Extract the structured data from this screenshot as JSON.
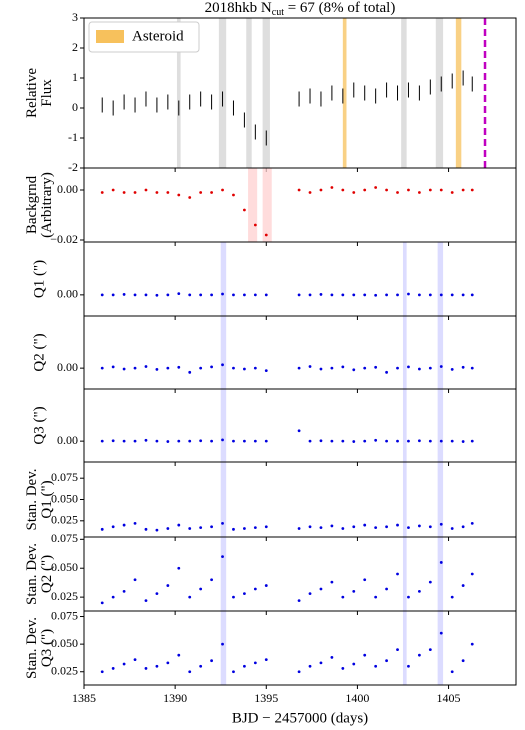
{
  "chart_data": [
    {
      "type": "errorbar",
      "title": "2018hkb  N",
      "title_sub": "cut",
      "title_rest": " = 67 (8% of total)",
      "ylabel": [
        "Relative",
        "Flux"
      ],
      "color": "#000000",
      "xlim": [
        1385,
        1408.7
      ],
      "ylim": [
        -2,
        3
      ],
      "yticks": [
        -2,
        -1,
        0,
        1,
        2,
        3
      ],
      "yerr": 0.25,
      "x": [
        1386.0,
        1386.6,
        1387.2,
        1387.8,
        1388.4,
        1389.0,
        1389.6,
        1390.2,
        1390.8,
        1391.4,
        1392.0,
        1392.6,
        1393.2,
        1393.8,
        1394.4,
        1395.0,
        1396.8,
        1397.4,
        1398.0,
        1398.6,
        1399.2,
        1399.8,
        1400.4,
        1401.0,
        1401.6,
        1402.2,
        1402.8,
        1403.4,
        1404.0,
        1404.6,
        1405.2,
        1405.8,
        1406.3
      ],
      "values": [
        0.1,
        0.0,
        0.2,
        0.1,
        0.3,
        0.1,
        0.2,
        0.0,
        0.2,
        0.3,
        0.2,
        0.3,
        0.0,
        -0.4,
        -0.8,
        -1.0,
        0.3,
        0.4,
        0.3,
        0.5,
        0.4,
        0.6,
        0.5,
        0.4,
        0.6,
        0.5,
        0.6,
        0.5,
        0.7,
        0.8,
        0.9,
        1.0,
        0.8
      ],
      "bands": [
        {
          "color": "#d3d3d3",
          "ranges": [
            [
              1390.1,
              1390.3
            ],
            [
              1392.4,
              1392.8
            ],
            [
              1393.9,
              1394.2
            ],
            [
              1394.8,
              1395.2
            ],
            [
              1402.4,
              1402.7
            ],
            [
              1404.3,
              1404.7
            ]
          ]
        },
        {
          "name": "Asteroid",
          "color": "#f7c15c",
          "ranges": [
            [
              1399.2,
              1399.4
            ],
            [
              1405.4,
              1405.7
            ]
          ]
        }
      ],
      "cut_line": 1407.0,
      "cut_color": "#c000c0"
    },
    {
      "type": "scatter",
      "ylabel": [
        "Backgrnd",
        "(Arbitrary)"
      ],
      "color": "#e00000",
      "xlim": [
        1385,
        1408.7
      ],
      "ylim": [
        -0.0208,
        0.0088
      ],
      "yticks": [
        {
          "value": -0.02,
          "label": "−0.02"
        },
        {
          "value": 0,
          "label": "0.00"
        }
      ],
      "x": [
        1386.0,
        1386.6,
        1387.2,
        1387.8,
        1388.4,
        1389.0,
        1389.6,
        1390.2,
        1390.8,
        1391.4,
        1392.0,
        1392.6,
        1393.2,
        1393.8,
        1394.4,
        1395.0,
        1396.8,
        1397.4,
        1398.0,
        1398.6,
        1399.2,
        1399.8,
        1400.4,
        1401.0,
        1401.6,
        1402.2,
        1402.8,
        1403.4,
        1404.0,
        1404.6,
        1405.2,
        1405.8,
        1406.3
      ],
      "values": [
        -0.001,
        0.0,
        -0.001,
        -0.001,
        0.0,
        -0.001,
        -0.001,
        -0.002,
        -0.003,
        -0.001,
        -0.001,
        0.0,
        -0.002,
        -0.008,
        -0.014,
        -0.018,
        0.0,
        -0.001,
        0.0,
        0.001,
        0.0,
        -0.001,
        0.0,
        0.001,
        0.0,
        -0.001,
        0.0,
        -0.001,
        0.0,
        0.0,
        -0.001,
        0.0,
        0.0
      ],
      "bands": [
        {
          "color": "#ffd0d0",
          "ranges": [
            [
              1394.0,
              1394.5
            ],
            [
              1394.8,
              1395.3
            ]
          ]
        }
      ]
    },
    {
      "type": "scatter",
      "ylabel": [
        "Q1 (\")"
      ],
      "color": "#0000e0",
      "xlim": [
        1385,
        1408.7
      ],
      "ylim": [
        -0.005,
        0.0125
      ],
      "yticks": [
        {
          "value": 0,
          "label": "0.00"
        }
      ],
      "x": [
        1386.0,
        1386.6,
        1387.2,
        1387.8,
        1388.4,
        1389.0,
        1389.6,
        1390.2,
        1390.8,
        1391.4,
        1392.0,
        1392.6,
        1393.2,
        1393.8,
        1394.4,
        1395.0,
        1396.8,
        1397.4,
        1398.0,
        1398.6,
        1399.2,
        1399.8,
        1400.4,
        1401.0,
        1401.6,
        1402.2,
        1402.8,
        1403.4,
        1404.0,
        1404.6,
        1405.2,
        1405.8,
        1406.3
      ],
      "values": [
        0.0,
        0.0,
        0.0001,
        0.0,
        0.0,
        -0.0001,
        0.0,
        0.0003,
        0.0,
        0.0,
        0.0,
        0.0002,
        0.0,
        0.0,
        0.0,
        0.0,
        0.0,
        0.0,
        0.0001,
        0.0,
        0.0,
        0.0,
        0.0,
        -0.0001,
        0.0,
        0.0,
        0.0002,
        0.0,
        0.0,
        0.0,
        0.0,
        0.0,
        0.0
      ],
      "bands": [
        {
          "color": "#d0d0ff",
          "ranges": [
            [
              1392.5,
              1392.8
            ],
            [
              1402.5,
              1402.7
            ],
            [
              1404.4,
              1404.7
            ]
          ]
        }
      ]
    },
    {
      "type": "scatter",
      "ylabel": [
        "Q2 (\")"
      ],
      "color": "#0000e0",
      "xlim": [
        1385,
        1408.7
      ],
      "ylim": [
        -0.005,
        0.0125
      ],
      "yticks": [
        {
          "value": 0,
          "label": "0.00"
        }
      ],
      "x": [
        1386.0,
        1386.6,
        1387.2,
        1387.8,
        1388.4,
        1389.0,
        1389.6,
        1390.2,
        1390.8,
        1391.4,
        1392.0,
        1392.6,
        1393.2,
        1393.8,
        1394.4,
        1395.0,
        1396.8,
        1397.4,
        1398.0,
        1398.6,
        1399.2,
        1399.8,
        1400.4,
        1401.0,
        1401.6,
        1402.2,
        1402.8,
        1403.4,
        1404.0,
        1404.6,
        1405.2,
        1405.8,
        1406.3
      ],
      "values": [
        0.0,
        0.0003,
        -0.0002,
        0.0,
        0.0004,
        -0.0003,
        0.0,
        0.0002,
        -0.001,
        0.0,
        0.0003,
        0.0008,
        0.0,
        -0.0002,
        0.0,
        -0.0006,
        0.0,
        0.0004,
        -0.0002,
        0.0,
        0.0003,
        -0.0004,
        0.0,
        0.0002,
        -0.001,
        0.0,
        0.0003,
        -0.0002,
        0.0,
        0.0004,
        -0.0003,
        0.0002,
        0.0
      ],
      "bands": [
        {
          "color": "#d0d0ff",
          "ranges": [
            [
              1392.5,
              1392.8
            ],
            [
              1402.5,
              1402.7
            ],
            [
              1404.4,
              1404.7
            ]
          ]
        }
      ]
    },
    {
      "type": "scatter",
      "ylabel": [
        "Q3 (\")"
      ],
      "color": "#0000e0",
      "xlim": [
        1385,
        1408.7
      ],
      "ylim": [
        -0.005,
        0.0125
      ],
      "yticks": [
        {
          "value": 0,
          "label": "0.00"
        }
      ],
      "x": [
        1386.0,
        1386.6,
        1387.2,
        1387.8,
        1388.4,
        1389.0,
        1389.6,
        1390.2,
        1390.8,
        1391.4,
        1392.0,
        1392.6,
        1393.2,
        1393.8,
        1394.4,
        1395.0,
        1396.8,
        1397.4,
        1398.0,
        1398.6,
        1399.2,
        1399.8,
        1400.4,
        1401.0,
        1401.6,
        1402.2,
        1402.8,
        1403.4,
        1404.0,
        1404.6,
        1405.2,
        1405.8,
        1406.3
      ],
      "values": [
        0.0,
        0.0001,
        0.0,
        0.0,
        0.0002,
        0.0,
        -0.0001,
        0.0,
        0.0,
        0.0001,
        0.0,
        0.0003,
        0.0,
        0.0,
        0.0,
        0.0,
        0.0025,
        0.0,
        0.0001,
        0.0,
        0.0,
        -0.0001,
        0.0,
        0.0002,
        0.0,
        0.0,
        0.0,
        0.0001,
        0.0,
        0.0,
        0.0,
        -0.0001,
        0.0
      ],
      "bands": [
        {
          "color": "#d0d0ff",
          "ranges": [
            [
              1392.5,
              1392.8
            ],
            [
              1402.5,
              1402.7
            ],
            [
              1404.4,
              1404.7
            ]
          ]
        }
      ]
    },
    {
      "type": "scatter",
      "ylabel": [
        "Stan. Dev.",
        "Q1 (\")"
      ],
      "color": "#0000e0",
      "xlim": [
        1385,
        1408.7
      ],
      "ylim": [
        0.006,
        0.094
      ],
      "yticks": [
        0.025,
        {
          "value": 0.05,
          "label": "0.050"
        },
        0.075
      ],
      "x": [
        1386.0,
        1386.6,
        1387.2,
        1387.8,
        1388.4,
        1389.0,
        1389.6,
        1390.2,
        1390.8,
        1391.4,
        1392.0,
        1392.6,
        1393.2,
        1393.8,
        1394.4,
        1395.0,
        1396.8,
        1397.4,
        1398.0,
        1398.6,
        1399.2,
        1399.8,
        1400.4,
        1401.0,
        1401.6,
        1402.2,
        1402.8,
        1403.4,
        1404.0,
        1404.6,
        1405.2,
        1405.8,
        1406.3
      ],
      "values": [
        0.015,
        0.018,
        0.02,
        0.022,
        0.015,
        0.014,
        0.016,
        0.02,
        0.016,
        0.017,
        0.018,
        0.022,
        0.015,
        0.016,
        0.017,
        0.018,
        0.016,
        0.018,
        0.017,
        0.019,
        0.016,
        0.018,
        0.02,
        0.017,
        0.018,
        0.02,
        0.017,
        0.019,
        0.018,
        0.021,
        0.016,
        0.018,
        0.022
      ],
      "bands": [
        {
          "color": "#d0d0ff",
          "ranges": [
            [
              1392.5,
              1392.8
            ],
            [
              1402.5,
              1402.7
            ],
            [
              1404.4,
              1404.7
            ]
          ]
        }
      ]
    },
    {
      "type": "scatter",
      "ylabel": [
        "Stan. Dev.",
        "Q2 (\")"
      ],
      "color": "#0000e0",
      "xlim": [
        1385,
        1408.7
      ],
      "ylim": [
        0.013,
        0.077
      ],
      "yticks": [
        0.025,
        {
          "value": 0.05,
          "label": "0.050"
        },
        0.075
      ],
      "x": [
        1386.0,
        1386.6,
        1387.2,
        1387.8,
        1388.4,
        1389.0,
        1389.6,
        1390.2,
        1390.8,
        1391.4,
        1392.0,
        1392.6,
        1393.2,
        1393.8,
        1394.4,
        1395.0,
        1396.8,
        1397.4,
        1398.0,
        1398.6,
        1399.2,
        1399.8,
        1400.4,
        1401.0,
        1401.6,
        1402.2,
        1402.8,
        1403.4,
        1404.0,
        1404.6,
        1405.2,
        1405.8,
        1406.3
      ],
      "values": [
        0.02,
        0.025,
        0.03,
        0.04,
        0.022,
        0.028,
        0.035,
        0.05,
        0.025,
        0.032,
        0.04,
        0.06,
        0.025,
        0.028,
        0.032,
        0.035,
        0.022,
        0.028,
        0.032,
        0.038,
        0.025,
        0.03,
        0.04,
        0.025,
        0.032,
        0.045,
        0.025,
        0.03,
        0.038,
        0.055,
        0.025,
        0.035,
        0.045
      ],
      "bands": [
        {
          "color": "#d0d0ff",
          "ranges": [
            [
              1392.5,
              1392.8
            ],
            [
              1402.5,
              1402.7
            ],
            [
              1404.4,
              1404.7
            ]
          ]
        }
      ]
    },
    {
      "type": "scatter",
      "ylabel": [
        "Stan. Dev.",
        "Q3 (\")"
      ],
      "color": "#0000e0",
      "xlim": [
        1385,
        1408.7
      ],
      "ylim": [
        0.013,
        0.08
      ],
      "yticks": [
        0.025,
        {
          "value": 0.05,
          "label": "0.050"
        },
        0.075
      ],
      "x": [
        1386.0,
        1386.6,
        1387.2,
        1387.8,
        1388.4,
        1389.0,
        1389.6,
        1390.2,
        1390.8,
        1391.4,
        1392.0,
        1392.6,
        1393.2,
        1393.8,
        1394.4,
        1395.0,
        1396.8,
        1397.4,
        1398.0,
        1398.6,
        1399.2,
        1399.8,
        1400.4,
        1401.0,
        1401.6,
        1402.2,
        1402.8,
        1403.4,
        1404.0,
        1404.6,
        1405.2,
        1405.8,
        1406.3
      ],
      "values": [
        0.025,
        0.028,
        0.032,
        0.036,
        0.028,
        0.03,
        0.033,
        0.04,
        0.025,
        0.03,
        0.035,
        0.05,
        0.025,
        0.03,
        0.033,
        0.036,
        0.025,
        0.03,
        0.033,
        0.038,
        0.028,
        0.032,
        0.04,
        0.03,
        0.035,
        0.045,
        0.03,
        0.04,
        0.045,
        0.06,
        0.025,
        0.035,
        0.05
      ],
      "bands": [
        {
          "color": "#d0d0ff",
          "ranges": [
            [
              1392.5,
              1392.8
            ],
            [
              1402.5,
              1402.7
            ],
            [
              1404.4,
              1404.7
            ]
          ]
        }
      ],
      "xlabel": "BJD − 2457000 (days)",
      "xticks": [
        1385,
        1390,
        1395,
        1400,
        1405
      ]
    }
  ]
}
